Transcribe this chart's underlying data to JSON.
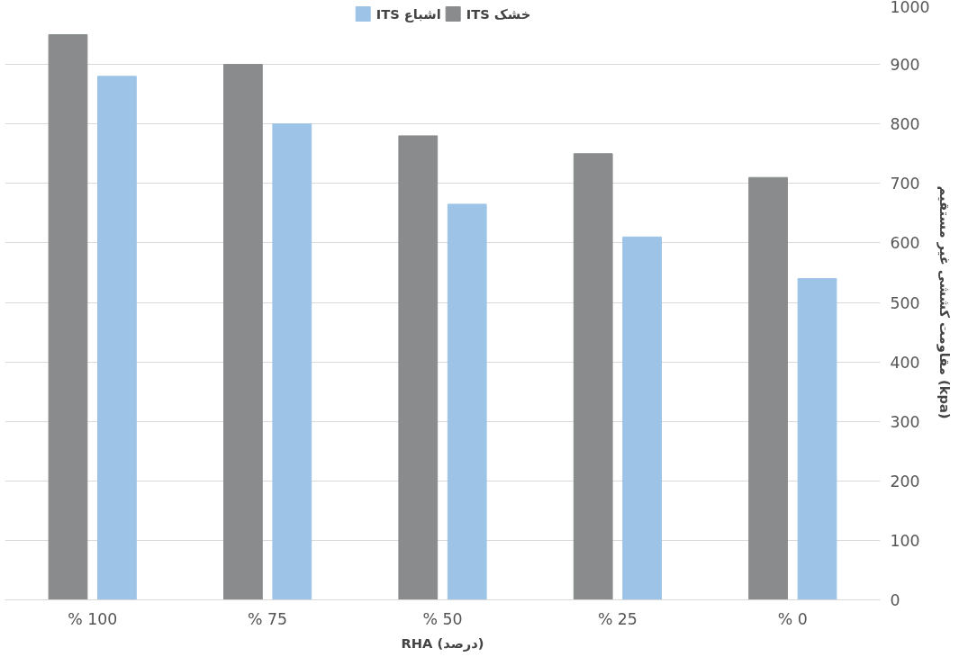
{
  "chart_data": {
    "type": "bar",
    "xlabel": "RHA (درصد)",
    "ylabel": "مقاومت کششی غیر مستقیم (kpa)",
    "categories": [
      "% 100",
      "% 75",
      "% 50",
      "% 25",
      "% 0"
    ],
    "series": [
      {
        "name": "ITS خشک",
        "color": "#898b8c",
        "values": [
          950,
          900,
          780,
          750,
          710
        ]
      },
      {
        "name": "ITS اشباع",
        "color": "#9dc3e6",
        "values": [
          880,
          800,
          665,
          610,
          540
        ]
      }
    ],
    "ylim": [
      0,
      1000
    ],
    "yticks": [
      0,
      100,
      200,
      300,
      400,
      500,
      600,
      700,
      800,
      900,
      1000
    ],
    "grid": "y",
    "legend": "top"
  }
}
